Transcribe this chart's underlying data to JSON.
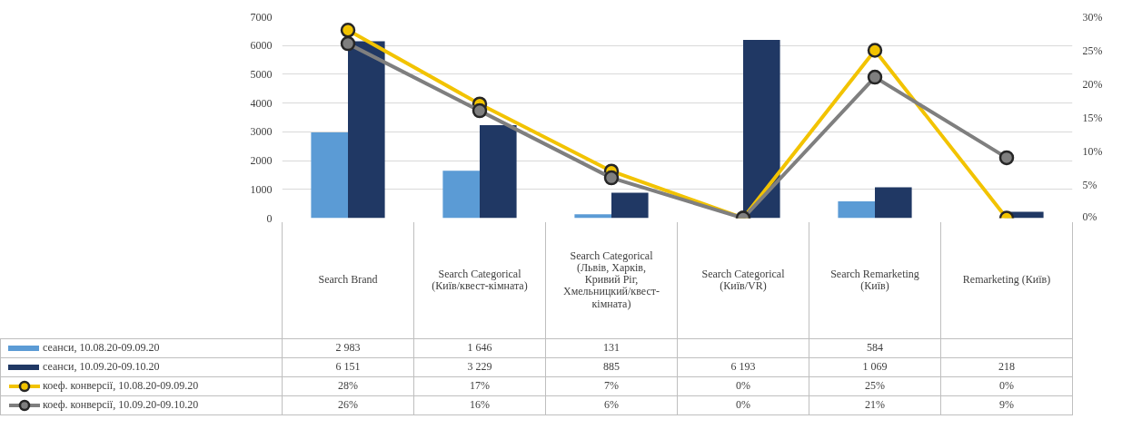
{
  "chart_data": {
    "type": "bar",
    "categories": [
      "Search Brand",
      "Search Categorical (Київ/квест-кімната)",
      "Search Categorical (Львів, Харків, Кривий Ріг, Хмельницкий/квест-кімната)",
      "Search Categorical (Київ/VR)",
      "Search Remarketing (Київ)",
      "Remarketing (Київ)"
    ],
    "series": [
      {
        "name": "сеанси, 10.08.20-09.09.20",
        "color": "#5b9bd5",
        "values": [
          2983,
          1646,
          131,
          null,
          584,
          null
        ],
        "value_labels": [
          "2 983",
          "1 646",
          "131",
          null,
          "584",
          null
        ]
      },
      {
        "name": "сеанси, 10.09.20-09.10.20",
        "color": "#203864",
        "values": [
          6151,
          3229,
          885,
          6193,
          1069,
          218
        ],
        "value_labels": [
          "6 151",
          "3 229",
          "885",
          "6 193",
          "1 069",
          "218"
        ]
      },
      {
        "name": "коеф. конверсії, 10.08.20-09.09.20",
        "type": "line",
        "axis": "y2",
        "color": "#f2c300",
        "values": [
          28,
          17,
          7,
          0,
          25,
          0
        ],
        "value_labels": [
          "28%",
          "17%",
          "7%",
          "0%",
          "25%",
          "0%"
        ]
      },
      {
        "name": "коеф. конверсії, 10.09.20-09.10.20",
        "type": "line",
        "axis": "y2",
        "color": "#7f7f7f",
        "values": [
          26,
          16,
          6,
          0,
          21,
          9
        ],
        "value_labels": [
          "26%",
          "16%",
          "6%",
          "0%",
          "21%",
          "9%"
        ]
      }
    ],
    "ylim": [
      0,
      7000
    ],
    "yticks": [
      0,
      1000,
      2000,
      3000,
      4000,
      5000,
      6000,
      7000
    ],
    "y2lim": [
      0,
      30
    ],
    "y2ticks": [
      {
        "value": 0,
        "label": "0%"
      },
      {
        "value": 5,
        "label": "5%"
      },
      {
        "value": 10,
        "label": "10%"
      },
      {
        "value": 15,
        "label": "15%"
      },
      {
        "value": 20,
        "label": "20%"
      },
      {
        "value": 25,
        "label": "25%"
      },
      {
        "value": 30,
        "label": "30%"
      }
    ],
    "grid": "y",
    "legend": "bottom",
    "marker": "circle",
    "line_style": "solid"
  }
}
